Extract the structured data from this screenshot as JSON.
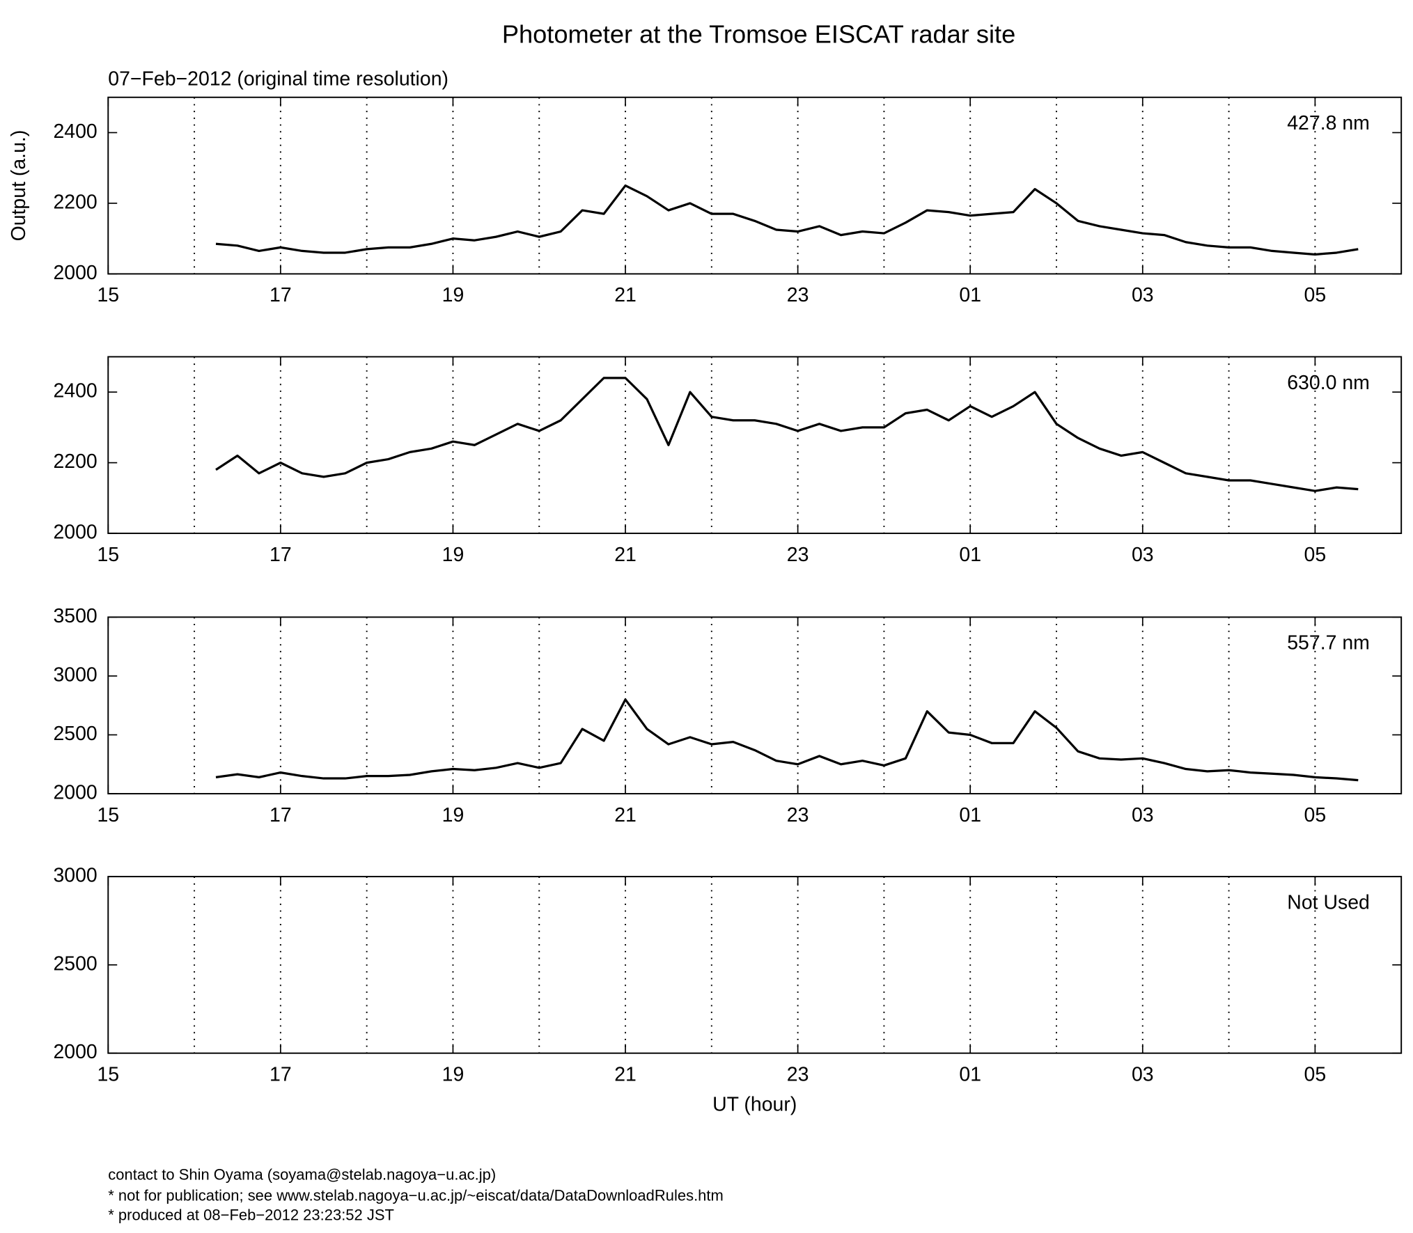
{
  "title": "Photometer at the Tromsoe EISCAT radar site",
  "subtitle": "07−Feb−2012 (original time resolution)",
  "footer": [
    "contact to Shin Oyama (soyama@stelab.nagoya−u.ac.jp)",
    "* not for publication; see www.stelab.nagoya−u.ac.jp/~eiscat/data/DataDownloadRules.htm",
    "* produced at 08−Feb−2012 23:23:52 JST"
  ],
  "chart_data": [
    {
      "type": "line",
      "label": "427.8 nm",
      "ylabel": "Output (a.u.)",
      "xlim": [
        15,
        30
      ],
      "xticks": [
        15,
        17,
        19,
        21,
        23,
        {
          "value": 25,
          "label": "01"
        },
        {
          "value": 27,
          "label": "03"
        },
        {
          "value": 29,
          "label": "05"
        }
      ],
      "xminor": [
        16,
        18,
        20,
        22,
        24,
        26,
        28
      ],
      "grid": true,
      "ylim": [
        2000,
        2500
      ],
      "yticks": [
        2000,
        2200,
        2400
      ],
      "x": [
        16.25,
        16.5,
        16.75,
        17,
        17.25,
        17.5,
        17.75,
        18,
        18.25,
        18.5,
        18.75,
        19,
        19.25,
        19.5,
        19.75,
        20,
        20.25,
        20.5,
        20.75,
        21,
        21.25,
        21.5,
        21.75,
        22,
        22.25,
        22.5,
        22.75,
        23,
        23.25,
        23.5,
        23.75,
        24,
        24.25,
        24.5,
        24.75,
        25,
        25.25,
        25.5,
        25.75,
        26,
        26.25,
        26.5,
        26.75,
        27,
        27.25,
        27.5,
        27.75,
        28,
        28.25,
        28.5,
        28.75,
        29,
        29.25,
        29.5
      ],
      "series": [
        {
          "color": "#000000",
          "values": [
            2085,
            2080,
            2065,
            2075,
            2065,
            2060,
            2060,
            2070,
            2075,
            2075,
            2085,
            2100,
            2095,
            2105,
            2120,
            2105,
            2120,
            2180,
            2170,
            2250,
            2220,
            2180,
            2200,
            2170,
            2170,
            2150,
            2125,
            2120,
            2135,
            2110,
            2120,
            2115,
            2145,
            2180,
            2175,
            2165,
            2170,
            2175,
            2240,
            2200,
            2150,
            2135,
            2125,
            2115,
            2110,
            2090,
            2080,
            2075,
            2075,
            2065,
            2060,
            2055,
            2060,
            2070
          ]
        }
      ]
    },
    {
      "type": "line",
      "label": "630.0 nm",
      "xlim": [
        15,
        30
      ],
      "xticks": [
        15,
        17,
        19,
        21,
        23,
        {
          "value": 25,
          "label": "01"
        },
        {
          "value": 27,
          "label": "03"
        },
        {
          "value": 29,
          "label": "05"
        }
      ],
      "xminor": [
        16,
        18,
        20,
        22,
        24,
        26,
        28
      ],
      "grid": true,
      "ylim": [
        2000,
        2500
      ],
      "yticks": [
        2000,
        2200,
        2400
      ],
      "x": [
        16.25,
        16.5,
        16.75,
        17,
        17.25,
        17.5,
        17.75,
        18,
        18.25,
        18.5,
        18.75,
        19,
        19.25,
        19.5,
        19.75,
        20,
        20.25,
        20.5,
        20.75,
        21,
        21.25,
        21.5,
        21.75,
        22,
        22.25,
        22.5,
        22.75,
        23,
        23.25,
        23.5,
        23.75,
        24,
        24.25,
        24.5,
        24.75,
        25,
        25.25,
        25.5,
        25.75,
        26,
        26.25,
        26.5,
        26.75,
        27,
        27.25,
        27.5,
        27.75,
        28,
        28.25,
        28.5,
        28.75,
        29,
        29.25,
        29.5
      ],
      "series": [
        {
          "color": "#000000",
          "values": [
            2180,
            2220,
            2170,
            2200,
            2170,
            2160,
            2170,
            2200,
            2210,
            2230,
            2240,
            2260,
            2250,
            2280,
            2310,
            2290,
            2320,
            2380,
            2440,
            2440,
            2380,
            2250,
            2400,
            2330,
            2320,
            2320,
            2310,
            2290,
            2310,
            2290,
            2300,
            2300,
            2340,
            2350,
            2320,
            2360,
            2330,
            2360,
            2400,
            2310,
            2270,
            2240,
            2220,
            2230,
            2200,
            2170,
            2160,
            2150,
            2150,
            2140,
            2130,
            2120,
            2130,
            2125
          ]
        }
      ]
    },
    {
      "type": "line",
      "label": "557.7 nm",
      "xlim": [
        15,
        30
      ],
      "xticks": [
        15,
        17,
        19,
        21,
        23,
        {
          "value": 25,
          "label": "01"
        },
        {
          "value": 27,
          "label": "03"
        },
        {
          "value": 29,
          "label": "05"
        }
      ],
      "xminor": [
        16,
        18,
        20,
        22,
        24,
        26,
        28
      ],
      "grid": true,
      "ylim": [
        2000,
        3500
      ],
      "yticks": [
        2000,
        2500,
        3000,
        3500
      ],
      "x": [
        16.25,
        16.5,
        16.75,
        17,
        17.25,
        17.5,
        17.75,
        18,
        18.25,
        18.5,
        18.75,
        19,
        19.25,
        19.5,
        19.75,
        20,
        20.25,
        20.5,
        20.75,
        21,
        21.25,
        21.5,
        21.75,
        22,
        22.25,
        22.5,
        22.75,
        23,
        23.25,
        23.5,
        23.75,
        24,
        24.25,
        24.5,
        24.75,
        25,
        25.25,
        25.5,
        25.75,
        26,
        26.25,
        26.5,
        26.75,
        27,
        27.25,
        27.5,
        27.75,
        28,
        28.25,
        28.5,
        28.75,
        29,
        29.25,
        29.5
      ],
      "series": [
        {
          "color": "#000000",
          "values": [
            2140,
            2165,
            2140,
            2180,
            2150,
            2130,
            2130,
            2150,
            2150,
            2160,
            2190,
            2210,
            2200,
            2220,
            2260,
            2220,
            2260,
            2550,
            2450,
            2800,
            2550,
            2420,
            2480,
            2420,
            2440,
            2370,
            2280,
            2250,
            2320,
            2250,
            2280,
            2240,
            2300,
            2700,
            2520,
            2500,
            2430,
            2430,
            2700,
            2560,
            2360,
            2300,
            2290,
            2300,
            2260,
            2210,
            2190,
            2200,
            2180,
            2170,
            2160,
            2140,
            2130,
            2115
          ]
        }
      ]
    },
    {
      "type": "line",
      "label": "Not Used",
      "xlabel": "UT (hour)",
      "xlim": [
        15,
        30
      ],
      "xticks": [
        15,
        17,
        19,
        21,
        23,
        {
          "value": 25,
          "label": "01"
        },
        {
          "value": 27,
          "label": "03"
        },
        {
          "value": 29,
          "label": "05"
        }
      ],
      "xminor": [
        16,
        18,
        20,
        22,
        24,
        26,
        28
      ],
      "grid": true,
      "ylim": [
        2000,
        3000
      ],
      "yticks": [
        2000,
        2500,
        3000
      ]
    }
  ]
}
